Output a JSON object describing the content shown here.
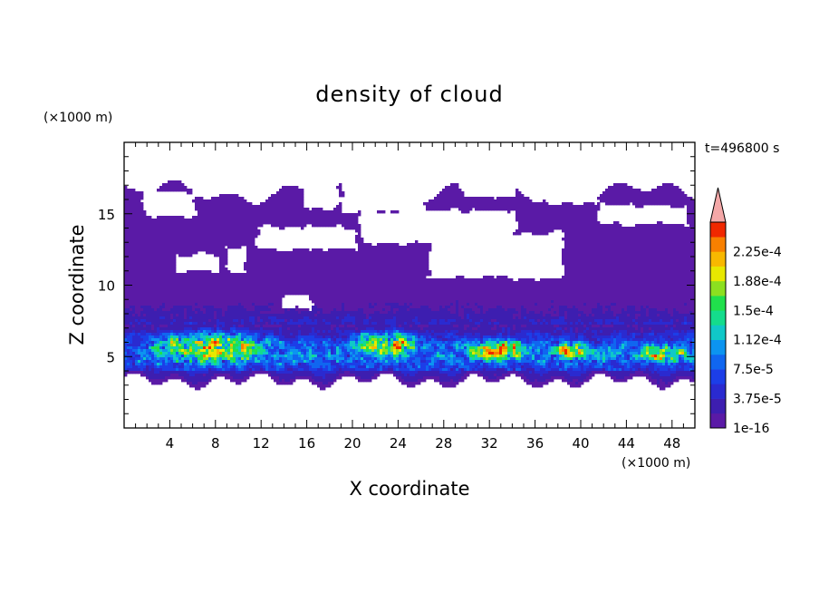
{
  "chart_data": {
    "type": "heatmap",
    "title": "density of cloud",
    "time_label": "t=496800 s",
    "xlabel": "X coordinate",
    "ylabel": "Z coordinate",
    "x_unit": "(×1000 m)",
    "y_unit": "(×1000 m)",
    "xlim": [
      0,
      50
    ],
    "ylim": [
      0,
      20
    ],
    "x_ticks": [
      4,
      8,
      12,
      16,
      20,
      24,
      28,
      32,
      36,
      40,
      44,
      48
    ],
    "x_tick_labels": [
      "4",
      "8",
      "12",
      "16",
      "20",
      "24",
      "28",
      "32",
      "36",
      "40",
      "44",
      "48"
    ],
    "y_ticks": [
      5,
      10,
      15
    ],
    "y_tick_labels": [
      "5",
      "10",
      "15"
    ],
    "colorbar": {
      "labels": [
        "2.25e-4",
        "1.88e-4",
        "1.5e-4",
        "1.12e-4",
        "7.5e-5",
        "3.75e-5",
        "1e-16"
      ],
      "label_values": [
        0.000225,
        0.0001875,
        0.00015,
        0.0001125,
        7.5e-05,
        3.75e-05,
        0
      ],
      "levels": [
        1e-16,
        1.875e-05,
        3.75e-05,
        5.625e-05,
        7.5e-05,
        9.375e-05,
        0.0001125,
        0.00013125,
        0.00015,
        0.00016875,
        0.0001875,
        0.00020625,
        0.000225,
        0.00024375
      ],
      "colors": [
        "#5a1aa6",
        "#3d1eb0",
        "#2a2ad0",
        "#1c3ee8",
        "#1066f0",
        "#0c94f0",
        "#10c8c8",
        "#14dc8c",
        "#20e04c",
        "#8ce020",
        "#e8e800",
        "#f8b800",
        "#f88000",
        "#f02800"
      ],
      "overflow_color": "#f4a8a8",
      "extend": "max"
    },
    "peak_density_regions": [
      {
        "x_range": [
          1.5,
          14
        ],
        "z_range": [
          4.5,
          6.5
        ],
        "level": "~1.9e-4"
      },
      {
        "x_range": [
          20,
          26
        ],
        "z_range": [
          5,
          6.5
        ],
        "level": "~2.0e-4"
      },
      {
        "x_range": [
          29.5,
          36
        ],
        "z_range": [
          4.8,
          6
        ],
        "level": "~1.9e-4"
      },
      {
        "x_range": [
          37.5,
          41
        ],
        "z_range": [
          4.8,
          5.8
        ],
        "level": "~1.7e-4"
      },
      {
        "x_range": [
          45,
          49.5
        ],
        "z_range": [
          4.8,
          5.6
        ],
        "level": "~1.6e-4"
      }
    ],
    "cloud_extent": {
      "z_bottom": 3.3,
      "z_top": 17.2
    }
  }
}
